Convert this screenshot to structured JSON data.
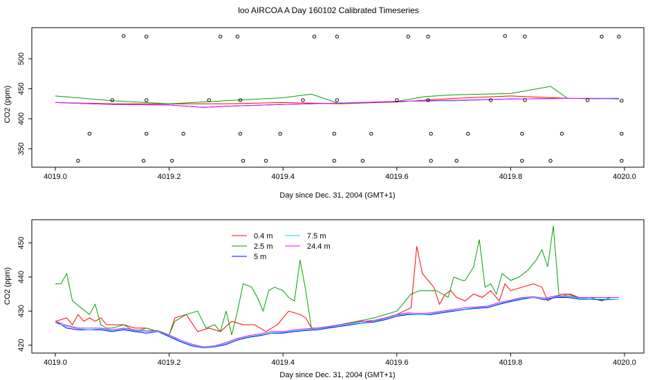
{
  "page": {
    "title": "loo AIRCOA A  Day 160102  Calibrated Timeseries"
  },
  "chart_data": [
    {
      "type": "scatter+line",
      "title": "",
      "xlabel": "Day since Dec. 31, 2004 (GMT+1)",
      "ylabel": "CO2 (ppm)",
      "xlim": [
        4019.0,
        4020.0
      ],
      "ylim": [
        325,
        545
      ],
      "xticks": [
        4019.0,
        4019.2,
        4019.4,
        4019.6,
        4019.8,
        4020.0
      ],
      "xtick_labels": [
        "4019.0",
        "4019.2",
        "4019.4",
        "4019.6",
        "4019.8",
        "4020.0"
      ],
      "yticks": [
        350,
        400,
        450,
        500
      ],
      "ytick_labels": [
        "350",
        "400",
        "450",
        "500"
      ],
      "calibration_points": {
        "name": "calibration",
        "x": [
          4019.04,
          4019.06,
          4019.1,
          4019.12,
          4019.155,
          4019.16,
          4019.16,
          4019.16,
          4019.205,
          4019.225,
          4019.27,
          4019.29,
          4019.32,
          4019.325,
          4019.325,
          4019.33,
          4019.37,
          4019.395,
          4019.435,
          4019.455,
          4019.49,
          4019.49,
          4019.495,
          4019.495,
          4019.54,
          4019.555,
          4019.6,
          4019.62,
          4019.655,
          4019.655,
          4019.66,
          4019.66,
          4019.705,
          4019.725,
          4019.765,
          4019.79,
          4019.82,
          4019.82,
          4019.825,
          4019.825,
          4019.87,
          4019.89,
          4019.935,
          4019.96,
          4019.99,
          4019.995,
          4019.995,
          4019.995
        ],
        "y": [
          330,
          375,
          431,
          538,
          330,
          375,
          431,
          537,
          330,
          375,
          431,
          537,
          537,
          431,
          375,
          330,
          330,
          375,
          431,
          537,
          330,
          375,
          431,
          537,
          330,
          375,
          431,
          537,
          537,
          431,
          375,
          330,
          330,
          375,
          431,
          538,
          330,
          375,
          431,
          537,
          330,
          375,
          431,
          537,
          537,
          430,
          375,
          330
        ]
      },
      "series": [
        {
          "color": "#ff0000",
          "x": [
            4019.0,
            4019.1,
            4019.2,
            4019.3,
            4019.4,
            4019.5,
            4019.6,
            4019.7,
            4019.8,
            4019.9,
            4019.99
          ],
          "y": [
            427,
            425,
            425,
            425,
            427,
            425,
            428,
            434,
            438,
            434,
            433
          ]
        },
        {
          "color": "#00a000",
          "x": [
            4019.0,
            4019.1,
            4019.2,
            4019.3,
            4019.4,
            4019.45,
            4019.5,
            4019.6,
            4019.65,
            4019.7,
            4019.8,
            4019.87,
            4019.9,
            4019.99
          ],
          "y": [
            438,
            430,
            425,
            430,
            435,
            441,
            425,
            429,
            437,
            440,
            442,
            454,
            434,
            434
          ]
        },
        {
          "color": "#0000ff",
          "x": [
            4019.0,
            4019.1,
            4019.2,
            4019.26,
            4019.3,
            4019.4,
            4019.5,
            4019.6,
            4019.7,
            4019.8,
            4019.9,
            4019.99
          ],
          "y": [
            427,
            424,
            423,
            419,
            421,
            424,
            426,
            429,
            430,
            433,
            434,
            433
          ]
        },
        {
          "color": "#00e0e0",
          "x": [
            4019.0,
            4019.1,
            4019.2,
            4019.26,
            4019.3,
            4019.4,
            4019.5,
            4019.6,
            4019.7,
            4019.8,
            4019.9,
            4019.99
          ],
          "y": [
            427,
            424,
            423,
            419,
            421,
            424,
            426,
            429,
            430,
            433,
            434,
            433
          ]
        },
        {
          "color": "#ff00ff",
          "x": [
            4019.0,
            4019.1,
            4019.2,
            4019.26,
            4019.3,
            4019.4,
            4019.5,
            4019.6,
            4019.7,
            4019.8,
            4019.9,
            4019.99
          ],
          "y": [
            427,
            424,
            423,
            419,
            421,
            424,
            426,
            429,
            431,
            433,
            434,
            434
          ]
        }
      ]
    },
    {
      "type": "line",
      "title": "",
      "xlabel": "Day since Dec. 31, 2004 (GMT+1)",
      "ylabel": "CO2 (ppm)",
      "xlim": [
        4019.0,
        4020.0
      ],
      "ylim": [
        418.5,
        456
      ],
      "xticks": [
        4019.0,
        4019.2,
        4019.4,
        4019.6,
        4019.8,
        4020.0
      ],
      "xtick_labels": [
        "4019.0",
        "4019.2",
        "4019.4",
        "4019.6",
        "4019.8",
        "4020.0"
      ],
      "yticks": [
        420,
        430,
        440,
        450
      ],
      "ytick_labels": [
        "420",
        "430",
        "440",
        "450"
      ],
      "legend": {
        "position": "top-left",
        "entries": [
          {
            "label": "0.4 m",
            "color": "#ff0000"
          },
          {
            "label": "2.5 m",
            "color": "#00a000"
          },
          {
            "label": "5 m",
            "color": "#0000ff"
          },
          {
            "label": "7.5 m",
            "color": "#00e0e0"
          },
          {
            "label": "24.4 m",
            "color": "#ff00ff"
          }
        ]
      },
      "series": [
        {
          "name": "0.4 m",
          "color": "#ff0000",
          "x": [
            4019.0,
            4019.01,
            4019.02,
            4019.03,
            4019.04,
            4019.05,
            4019.06,
            4019.07,
            4019.08,
            4019.09,
            4019.1,
            4019.12,
            4019.14,
            4019.16,
            4019.18,
            4019.2,
            4019.21,
            4019.23,
            4019.25,
            4019.27,
            4019.29,
            4019.31,
            4019.33,
            4019.35,
            4019.37,
            4019.39,
            4019.41,
            4019.43,
            4019.44,
            4019.45,
            4019.47,
            4019.5,
            4019.53,
            4019.56,
            4019.6,
            4019.625,
            4019.635,
            4019.645,
            4019.655,
            4019.665,
            4019.675,
            4019.685,
            4019.695,
            4019.705,
            4019.72,
            4019.735,
            4019.75,
            4019.765,
            4019.78,
            4019.79,
            4019.8,
            4019.82,
            4019.84,
            4019.855,
            4019.865,
            4019.875,
            4019.89,
            4019.905,
            4019.92,
            4019.94,
            4019.96,
            4019.975,
            4019.99
          ],
          "y": [
            427,
            427.5,
            428,
            426,
            429,
            427,
            428,
            427,
            428,
            426,
            426,
            426,
            425,
            425,
            424,
            423,
            428,
            429,
            424,
            425,
            424,
            427,
            426,
            426,
            424,
            426,
            430,
            429,
            428,
            425,
            425,
            426,
            427,
            427,
            429,
            431,
            449,
            441,
            439,
            437,
            432,
            435,
            436,
            434,
            433,
            435,
            434,
            436,
            433,
            438,
            436,
            437,
            438,
            437,
            433,
            434,
            435,
            435,
            434,
            434,
            433,
            434,
            434
          ]
        },
        {
          "name": "2.5 m",
          "color": "#00a000",
          "x": [
            4019.0,
            4019.01,
            4019.02,
            4019.03,
            4019.045,
            4019.06,
            4019.07,
            4019.08,
            4019.09,
            4019.1,
            4019.12,
            4019.14,
            4019.16,
            4019.18,
            4019.2,
            4019.21,
            4019.23,
            4019.25,
            4019.265,
            4019.28,
            4019.29,
            4019.3,
            4019.31,
            4019.32,
            4019.33,
            4019.345,
            4019.355,
            4019.365,
            4019.375,
            4019.385,
            4019.4,
            4019.41,
            4019.42,
            4019.43,
            4019.44,
            4019.45,
            4019.47,
            4019.5,
            4019.53,
            4019.56,
            4019.6,
            4019.625,
            4019.64,
            4019.655,
            4019.67,
            4019.69,
            4019.7,
            4019.715,
            4019.72,
            4019.735,
            4019.745,
            4019.755,
            4019.765,
            4019.775,
            4019.785,
            4019.8,
            4019.815,
            4019.83,
            4019.845,
            4019.855,
            4019.865,
            4019.875,
            4019.885,
            4019.9,
            4019.92,
            4019.94,
            4019.96,
            4019.975,
            4019.99
          ],
          "y": [
            438,
            438,
            441,
            433,
            431,
            429,
            432,
            426,
            425,
            425,
            426,
            424,
            425,
            424,
            423,
            427,
            429,
            430,
            425,
            426,
            424,
            430,
            423,
            430,
            438,
            437,
            434,
            430,
            436,
            437,
            436,
            434,
            433,
            445,
            436,
            425,
            425,
            426,
            427,
            428,
            430,
            435,
            436,
            436,
            436,
            434,
            440,
            439,
            439,
            443,
            451,
            437,
            438,
            435,
            441,
            439,
            440,
            442,
            445,
            448,
            443,
            455,
            434,
            435,
            434,
            434,
            433,
            434,
            434
          ]
        },
        {
          "name": "5 m",
          "color": "#0000ff",
          "x": [
            4019.0,
            4019.02,
            4019.04,
            4019.06,
            4019.08,
            4019.1,
            4019.12,
            4019.14,
            4019.16,
            4019.18,
            4019.2,
            4019.22,
            4019.24,
            4019.26,
            4019.28,
            4019.3,
            4019.32,
            4019.34,
            4019.36,
            4019.38,
            4019.4,
            4019.42,
            4019.44,
            4019.46,
            4019.48,
            4019.5,
            4019.52,
            4019.54,
            4019.56,
            4019.58,
            4019.6,
            4019.62,
            4019.64,
            4019.66,
            4019.68,
            4019.7,
            4019.72,
            4019.74,
            4019.76,
            4019.78,
            4019.8,
            4019.82,
            4019.84,
            4019.86,
            4019.88,
            4019.9,
            4019.92,
            4019.94,
            4019.96,
            4019.99
          ],
          "y": [
            427,
            425,
            424.5,
            424.5,
            424.5,
            424,
            424.5,
            424,
            423.5,
            424,
            422.5,
            421,
            419.8,
            419.2,
            419.5,
            420.2,
            421.5,
            422.3,
            422.8,
            423.5,
            423.5,
            424,
            424.3,
            424.5,
            425,
            425.5,
            426,
            426.5,
            426.8,
            427.5,
            428.5,
            429,
            429,
            429,
            429.5,
            430,
            430.5,
            430.8,
            431,
            432,
            432.8,
            433.5,
            434,
            433.3,
            434,
            434,
            433.5,
            433.5,
            433.3,
            433.5
          ]
        },
        {
          "name": "7.5 m",
          "color": "#00e0e0",
          "x": [
            4019.0,
            4019.02,
            4019.04,
            4019.06,
            4019.08,
            4019.1,
            4019.12,
            4019.14,
            4019.16,
            4019.18,
            4019.2,
            4019.22,
            4019.24,
            4019.26,
            4019.28,
            4019.3,
            4019.32,
            4019.34,
            4019.36,
            4019.38,
            4019.4,
            4019.42,
            4019.44,
            4019.46,
            4019.48,
            4019.5,
            4019.52,
            4019.54,
            4019.56,
            4019.58,
            4019.6,
            4019.62,
            4019.64,
            4019.66,
            4019.68,
            4019.7,
            4019.72,
            4019.74,
            4019.76,
            4019.78,
            4019.8,
            4019.82,
            4019.84,
            4019.86,
            4019.88,
            4019.9,
            4019.92,
            4019.94,
            4019.96,
            4019.99
          ],
          "y": [
            426.5,
            425.5,
            424.8,
            424.5,
            424.8,
            424.2,
            424.8,
            424.2,
            424,
            424,
            422.8,
            421.2,
            420,
            419.3,
            419.6,
            420.5,
            421.8,
            422.5,
            423,
            423.6,
            423.8,
            424.2,
            424.5,
            424.8,
            425.2,
            425.8,
            426.2,
            426.6,
            427,
            427.8,
            428.8,
            429.2,
            429,
            429.2,
            429.8,
            430.2,
            430.6,
            431,
            431.2,
            432.2,
            433,
            433.8,
            434,
            433.5,
            434.2,
            434.2,
            433.8,
            433.6,
            433.5,
            433.5
          ]
        },
        {
          "name": "24.4 m",
          "color": "#ff00ff",
          "x": [
            4019.0,
            4019.02,
            4019.04,
            4019.06,
            4019.08,
            4019.1,
            4019.12,
            4019.14,
            4019.16,
            4019.18,
            4019.2,
            4019.22,
            4019.24,
            4019.26,
            4019.28,
            4019.3,
            4019.32,
            4019.34,
            4019.36,
            4019.38,
            4019.4,
            4019.42,
            4019.44,
            4019.46,
            4019.48,
            4019.5,
            4019.52,
            4019.54,
            4019.56,
            4019.58,
            4019.6,
            4019.62,
            4019.64,
            4019.66,
            4019.68,
            4019.7,
            4019.72,
            4019.74,
            4019.76,
            4019.78,
            4019.8,
            4019.82,
            4019.84,
            4019.86,
            4019.88,
            4019.9,
            4019.92,
            4019.94,
            4019.96,
            4019.99
          ],
          "y": [
            427,
            425.8,
            425,
            425,
            425,
            424.5,
            425,
            424.5,
            424.2,
            424.3,
            423,
            421.5,
            420.3,
            419.5,
            419.8,
            420.8,
            422,
            422.8,
            423.3,
            424,
            424,
            424.5,
            424.8,
            425,
            425.5,
            426,
            426.5,
            427,
            427.3,
            428,
            429,
            429.5,
            429.3,
            429.5,
            430,
            430.5,
            431,
            431.2,
            431.5,
            432.5,
            433.2,
            434,
            434.2,
            433.8,
            434.5,
            434.5,
            434,
            434,
            434,
            434
          ]
        }
      ]
    }
  ]
}
